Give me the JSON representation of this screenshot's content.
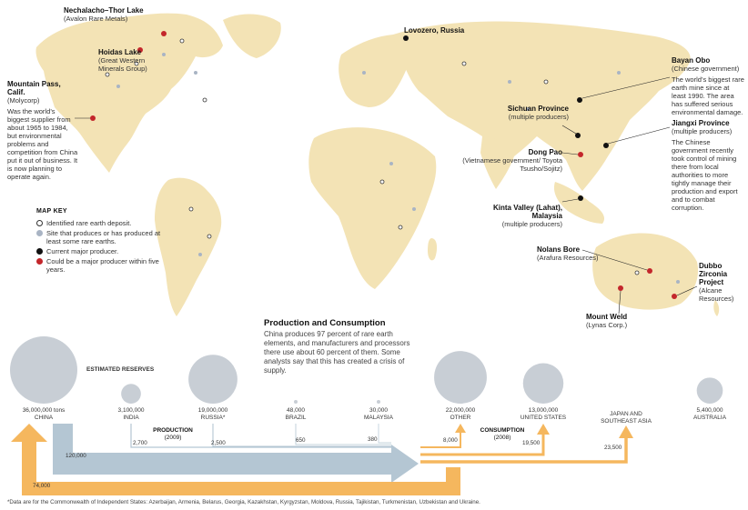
{
  "map": {
    "labels": {
      "nechalacho": {
        "name": "Nechalacho–Thor Lake",
        "owner": "(Avalon Rare Metals)"
      },
      "hoidas": {
        "name": "Hoidas Lake",
        "owner": "(Great Western Minerals Group)"
      },
      "mountain_pass": {
        "name": "Mountain Pass, Calif.",
        "owner": "(Molycorp)",
        "note": "Was the world’s biggest supplier from about 1965 to 1984, but environmental problems and competition from China put it out of business. It is now planning to operate again."
      },
      "lovozero": {
        "name": "Lovozero, Russia"
      },
      "bayan_obo": {
        "name": "Bayan Obo",
        "owner": "(Chinese government)",
        "note": "The world’s biggest rare earth mine since at least 1990. The area has suffered serious environmental damage."
      },
      "sichuan": {
        "name": "Sichuan Province",
        "owner": "(multiple producers)"
      },
      "jiangxi": {
        "name": "Jiangxi Province",
        "owner": "(multiple producers)",
        "note": "The Chinese government recently took control of mining there from local authorities to more tightly manage their production and export and to combat corruption."
      },
      "dong_pao": {
        "name": "Dong Pao",
        "owner": "(Vietnamese government/ Toyota Tsusho/Sojitz)"
      },
      "kinta": {
        "name": "Kinta Valley (Lahat), Malaysia",
        "owner": "(multiple producers)"
      },
      "nolans": {
        "name": "Nolans Bore",
        "owner": "(Arafura Resources)"
      },
      "dubbo": {
        "name": "Dubbo Zirconia Project",
        "owner": "(Alcane Resources)"
      },
      "mount_weld": {
        "name": "Mount Weld",
        "owner": "(Lynas Corp.)"
      }
    },
    "colors": {
      "land": "#f3e3b5",
      "site": "#a9b4c4",
      "current": "#111111",
      "future": "#c3262b"
    }
  },
  "key": {
    "title": "MAP KEY",
    "items": [
      {
        "type": "open",
        "label": "Identified rare earth deposit."
      },
      {
        "type": "site",
        "label": "Site that produces or has produced at least some rare earths."
      },
      {
        "type": "current",
        "label": "Current major producer."
      },
      {
        "type": "future",
        "label": "Could be a major producer within five years."
      }
    ]
  },
  "production_consumption": {
    "title": "Production and Consumption",
    "text": "China produces 97 percent of rare earth elements, and manufacturers and processors there use about 60 percent of them. Some analysts say that this has created a crisis of supply.",
    "reserves_label": "ESTIMATED RESERVES",
    "countries": [
      {
        "name": "CHINA",
        "reserves": "36,000,000 tons",
        "reserves_t": 36000000
      },
      {
        "name": "INDIA",
        "reserves": "3,100,000",
        "reserves_t": 3100000
      },
      {
        "name": "RUSSIA*",
        "reserves": "19,000,000",
        "reserves_t": 19000000
      },
      {
        "name": "BRAZIL",
        "reserves": "48,000",
        "reserves_t": 48000
      },
      {
        "name": "MALAYSIA",
        "reserves": "30,000",
        "reserves_t": 30000
      },
      {
        "name": "OTHER",
        "reserves": "22,000,000",
        "reserves_t": 22000000
      },
      {
        "name": "UNITED STATES",
        "reserves": "13,000,000",
        "reserves_t": 13000000
      },
      {
        "name": "JAPAN AND SOUTHEAST ASIA",
        "reserves": "",
        "reserves_t": 0
      },
      {
        "name": "AUSTRALIA",
        "reserves": "5,400,000",
        "reserves_t": 5400000
      }
    ],
    "production": {
      "label": "PRODUCTION",
      "year": "(2009)",
      "china": "120,000",
      "india": "2,700",
      "russia": "2,500",
      "brazil": "650",
      "malaysia": "380"
    },
    "consumption": {
      "label": "CONSUMPTION",
      "year": "(2008)",
      "other": "8,000",
      "us": "19,500",
      "japan": "23,500",
      "china": "74,000"
    },
    "colors": {
      "reserves": "#c8ced5",
      "production": "#b4c6d3",
      "consumption": "#f5b75e"
    }
  },
  "footnote": "*Data are for the Commonwealth of Independent States: Azerbaijan, Armenia, Belarus, Georgia, Kazakhstan, Kyrgyzstan, Moldova, Russia, Tajikistan, Turkmenistan, Uzbekistan and Ukraine."
}
